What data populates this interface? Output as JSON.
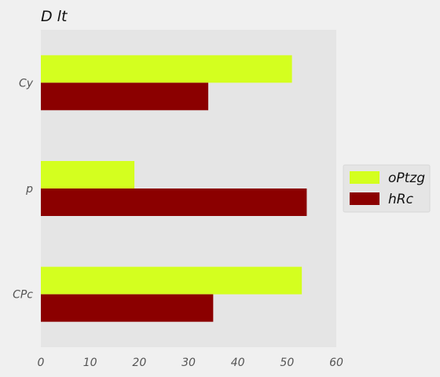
{
  "chart_data": {
    "type": "bar",
    "orientation": "horizontal",
    "title": "D lt",
    "xlabel": "",
    "ylabel": "",
    "categories": [
      "Cy",
      "p",
      "CPc"
    ],
    "series": [
      {
        "name": "oPtzg",
        "color": "#d4ff1f",
        "values": [
          51,
          19,
          53
        ]
      },
      {
        "name": "hRc",
        "color": "#8b0000",
        "values": [
          34,
          54,
          35
        ]
      }
    ],
    "xlim": [
      0,
      60
    ],
    "xticks": [
      "0",
      "10",
      "20",
      "30",
      "40",
      "50",
      "60"
    ],
    "grid": false,
    "legend_position": "right"
  },
  "colors": {
    "page_background": "#f0f0f0",
    "plot_background": "#e5e5e5",
    "legend_background": "#e5e5e5"
  }
}
